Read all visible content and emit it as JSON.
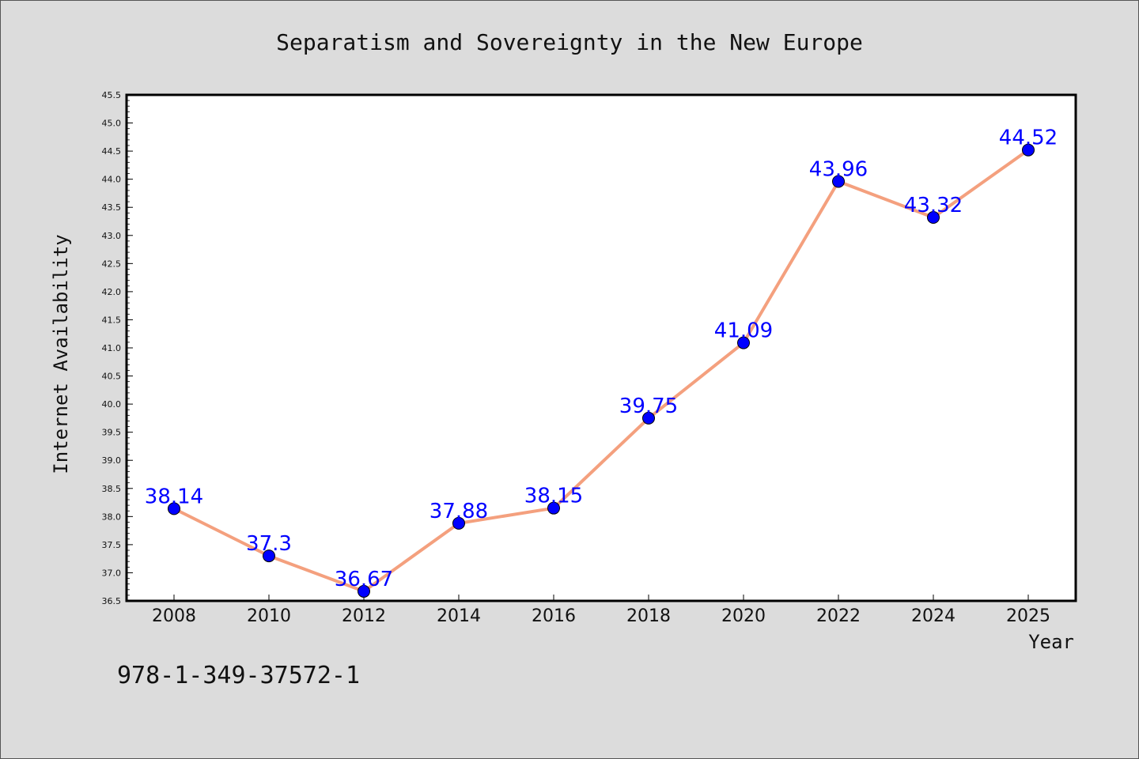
{
  "chart_data": {
    "type": "line",
    "title": "Separatism and Sovereignty in the New Europe",
    "xlabel": "Year",
    "ylabel": "Internet Availability",
    "categories": [
      "2008",
      "2010",
      "2012",
      "2014",
      "2016",
      "2018",
      "2020",
      "2022",
      "2024",
      "2025"
    ],
    "series": [
      {
        "values": [
          38.14,
          37.3,
          36.67,
          37.88,
          38.15,
          39.75,
          41.09,
          43.96,
          43.32,
          44.52
        ],
        "labels": [
          "38.14",
          "37.3",
          "36.67",
          "37.88",
          "38.15",
          "39.75",
          "41.09",
          "43.96",
          "43.32",
          "44.52"
        ]
      }
    ],
    "ylim": [
      36.5,
      45.5
    ],
    "yticks": [
      "36.5",
      "37.0",
      "37.5",
      "38.0",
      "38.5",
      "39.0",
      "39.5",
      "40.0",
      "40.5",
      "41.0",
      "41.5",
      "42.0",
      "42.5",
      "43.0",
      "43.5",
      "44.0",
      "44.5",
      "45.0",
      "45.5"
    ],
    "grid": false,
    "colors": {
      "line": "#f4a07e",
      "marker": "#0000ff",
      "label": "#0000ff",
      "background": "#dcdcdc",
      "plot": "#ffffff"
    }
  },
  "footer_code": "978-1-349-37572-1"
}
